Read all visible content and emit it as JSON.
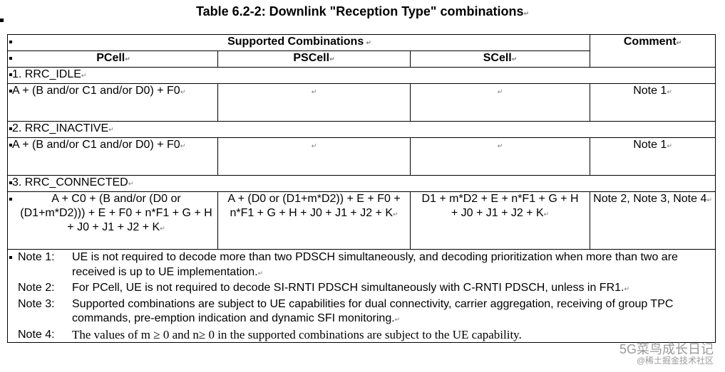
{
  "title": "Table 6.2-2: Downlink \"Reception Type\" combinations",
  "header": {
    "supported": "Supported Combinations",
    "comment": "Comment",
    "pcell": "PCell",
    "pscell": "PSCell",
    "scell": "SCell"
  },
  "sections": [
    {
      "label": "1. RRC_IDLE",
      "pcell": "A + (B and/or C1 and/or D0) + F0",
      "pscell": "",
      "scell": "",
      "comment": "Note 1"
    },
    {
      "label": "2. RRC_INACTIVE",
      "pcell": "A + (B and/or C1 and/or D0) + F0",
      "pscell": "",
      "scell": "",
      "comment": "Note 1"
    },
    {
      "label": "3. RRC_CONNECTED",
      "pcell": "A + C0 + (B and/or (D0 or (D1+m*D2))) + E + F0 + n*F1 + G + H + J0 + J1 + J2 + K",
      "pscell": "A + (D0 or (D1+m*D2)) + E + F0 + n*F1 + G + H + J0 + J1 + J2 + K",
      "scell_line1": "D1 + m*D2 + E + n*F1 + G + H",
      "scell_line2": "+ J0 + J1 + J2 + K",
      "comment": "Note 2, Note 3, Note 4"
    }
  ],
  "notes": [
    {
      "label": "Note 1:",
      "text": "UE is not required to decode more than two PDSCH simultaneously, and decoding prioritization when more than two are received is up to UE implementation."
    },
    {
      "label": "Note 2:",
      "text": "For PCell, UE is not required to decode SI-RNTI PDSCH simultaneously with C-RNTI PDSCH, unless in FR1."
    },
    {
      "label": "Note 3:",
      "text": "Supported combinations are subject to UE capabilities for dual connectivity, carrier aggregation, receiving of group TPC commands, pre-emption indication and dynamic SFI monitoring."
    },
    {
      "label": "Note 4:",
      "text": "The values of m ≥ 0 and n≥ 0 in the supported combinations are subject to the UE capability."
    }
  ],
  "watermark": {
    "line1": "5G菜鸟成长日记",
    "line2": "@稀土掘金技术社区"
  }
}
